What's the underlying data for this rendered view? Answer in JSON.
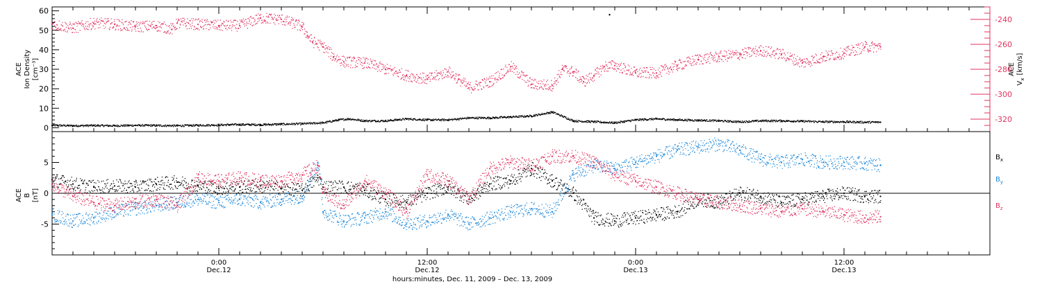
{
  "chart_data": [
    {
      "type": "scatter",
      "panel": "top",
      "ylabel_left": [
        "ACE",
        "Ion Density",
        "[cm⁻³]"
      ],
      "ylabel_right": [
        "ACE",
        "V",
        "x",
        "[km/s]"
      ],
      "ylim_left": [
        -2,
        62
      ],
      "ylim_right": [
        -330,
        -230
      ],
      "yticks_left": [
        "0",
        "10",
        "20",
        "30",
        "40",
        "50",
        "60"
      ],
      "yticks_right": [
        "-240",
        "-260",
        "-280",
        "-300",
        "-320"
      ],
      "right_axis_color": "#e0325f",
      "series": [
        {
          "axis": "left",
          "color": "#000000",
          "x": [
            0,
            2,
            4,
            6,
            8,
            10,
            12,
            14,
            16,
            17,
            18,
            20,
            22,
            24,
            26,
            27.5,
            28.5,
            30,
            32,
            34,
            36,
            38,
            40,
            42,
            44,
            46,
            48,
            50,
            52,
            54,
            56,
            58,
            60,
            62,
            64,
            66,
            68,
            70,
            72,
            74,
            76,
            78,
            79.5
          ],
          "values": [
            1.2,
            1.0,
            1.1,
            1.0,
            1.2,
            1.1,
            1.0,
            1.2,
            1.4,
            1.5,
            1.6,
            1.5,
            1.8,
            2.0,
            2.5,
            4.0,
            4.5,
            3.5,
            3.5,
            4.5,
            4.0,
            4.0,
            5.0,
            5.0,
            5.5,
            6.0,
            8.0,
            3.5,
            3.0,
            2.5,
            4.0,
            4.5,
            4.0,
            3.8,
            3.5,
            3.0,
            3.5,
            3.5,
            3.3,
            3.0,
            3.0,
            2.8,
            2.8
          ]
        },
        {
          "axis": "right",
          "color": "#e0325f",
          "x": [
            0,
            2,
            4,
            6,
            8,
            10,
            11.5,
            12,
            14,
            16,
            18,
            20,
            22,
            24,
            24.5,
            25,
            26,
            27,
            28,
            30,
            32,
            34,
            36,
            38,
            39,
            40,
            42,
            44,
            46,
            48,
            49,
            50,
            51,
            52,
            53,
            54,
            56,
            58,
            60,
            62,
            64,
            66,
            68,
            70,
            72,
            74,
            76,
            78,
            79.5
          ],
          "values": [
            -244,
            -247,
            -243,
            -244,
            -246,
            -245,
            -248,
            -243,
            -244,
            -245,
            -245,
            -239,
            -240,
            -246,
            -253,
            -258,
            -262,
            -270,
            -274,
            -275,
            -280,
            -285,
            -288,
            -282,
            -288,
            -295,
            -290,
            -278,
            -292,
            -293,
            -280,
            -282,
            -290,
            -285,
            -278,
            -277,
            -283,
            -283,
            -277,
            -272,
            -270,
            -268,
            -265,
            -268,
            -275,
            -270,
            -267,
            -262,
            -262
          ]
        }
      ],
      "marker": {
        "x": 53.5,
        "value": 58
      }
    },
    {
      "type": "scatter",
      "panel": "bottom",
      "ylabel": [
        "ACE",
        "B",
        "[nT]"
      ],
      "ylim": [
        -10,
        10
      ],
      "yticks": [
        "-5",
        "0",
        "5"
      ],
      "legend": [
        "B",
        "x",
        "B",
        "y",
        "B",
        "z"
      ],
      "zero_line": true,
      "series": [
        {
          "name": "Bx",
          "color": "#000000",
          "x": [
            0,
            2,
            4,
            6,
            8,
            10,
            12,
            14,
            16,
            18,
            20,
            22,
            24,
            25.5,
            26,
            28,
            30,
            32,
            34,
            36,
            38,
            40,
            42,
            44,
            46,
            48,
            50,
            52,
            54,
            56,
            58,
            60,
            62,
            64,
            66,
            68,
            70,
            72,
            74,
            76,
            78,
            79.5
          ],
          "values": [
            2.2,
            1.5,
            1.0,
            1.2,
            1.0,
            1.5,
            1.8,
            1.2,
            0.8,
            1.0,
            1.2,
            0.8,
            0.5,
            2.5,
            1.0,
            1.0,
            0.5,
            -1.0,
            -1.5,
            0.0,
            1.0,
            -1.0,
            1.5,
            2.0,
            4.0,
            2.0,
            0.0,
            -4.0,
            -4.5,
            -4.0,
            -3.5,
            -3.0,
            -1.0,
            -1.5,
            0.0,
            -0.5,
            -1.5,
            -1.0,
            -0.5,
            0.0,
            -0.5,
            -0.5
          ]
        },
        {
          "name": "By",
          "color": "#1a86d8",
          "x": [
            0,
            2,
            4,
            6,
            8,
            10,
            12,
            14,
            16,
            18,
            20,
            22,
            24,
            25.5,
            26,
            28,
            30,
            32,
            34,
            36,
            38,
            40,
            42,
            44,
            46,
            48,
            50,
            52,
            54,
            56,
            58,
            60,
            62,
            64,
            66,
            68,
            70,
            72,
            74,
            76,
            78,
            79.5
          ],
          "values": [
            -3.5,
            -4.5,
            -4.0,
            -3.0,
            -2.5,
            -2.0,
            -1.5,
            -1.0,
            -1.5,
            -1.0,
            -1.5,
            -1.0,
            -0.5,
            5.0,
            -3.0,
            -4.5,
            -4.0,
            -3.0,
            -5.0,
            -4.5,
            -3.5,
            -5.0,
            -4.0,
            -3.0,
            -2.5,
            -3.0,
            3.0,
            4.5,
            4.0,
            5.0,
            6.0,
            7.0,
            7.5,
            8.0,
            7.0,
            5.5,
            5.0,
            5.5,
            5.0,
            5.0,
            4.8,
            4.5
          ]
        },
        {
          "name": "Bz",
          "color": "#e0325f",
          "x": [
            0,
            2,
            4,
            6,
            8,
            10,
            12,
            14,
            16,
            18,
            20,
            22,
            24,
            25.5,
            26,
            28,
            30,
            32,
            34,
            36,
            38,
            40,
            42,
            44,
            46,
            48,
            50,
            52,
            54,
            56,
            58,
            60,
            62,
            64,
            66,
            68,
            70,
            72,
            74,
            76,
            78,
            79.5
          ],
          "values": [
            1.5,
            -0.5,
            -1.5,
            -2.0,
            -1.5,
            -1.0,
            -2.0,
            2.5,
            2.0,
            2.5,
            2.0,
            2.0,
            3.0,
            4.5,
            0.0,
            -2.0,
            2.0,
            0.0,
            -3.0,
            3.0,
            2.0,
            -1.0,
            4.0,
            5.0,
            4.5,
            6.0,
            6.0,
            5.0,
            3.0,
            2.0,
            1.0,
            0.0,
            -1.0,
            -1.5,
            -2.0,
            -2.5,
            -3.0,
            -2.5,
            -3.0,
            -3.5,
            -4.0,
            -3.8
          ]
        }
      ]
    }
  ],
  "x_axis": {
    "xlim": [
      0,
      90
    ],
    "ticks": [
      {
        "x": 16,
        "label": "0:00",
        "sublabel": "Dec.12"
      },
      {
        "x": 36,
        "label": "12:00",
        "sublabel": "Dec.12"
      },
      {
        "x": 56,
        "label": "0:00",
        "sublabel": "Dec.13"
      },
      {
        "x": 76,
        "label": "12:00",
        "sublabel": "Dec.13"
      }
    ],
    "label": "hours:minutes, Dec. 11, 2009 – Dec. 13, 2009"
  }
}
